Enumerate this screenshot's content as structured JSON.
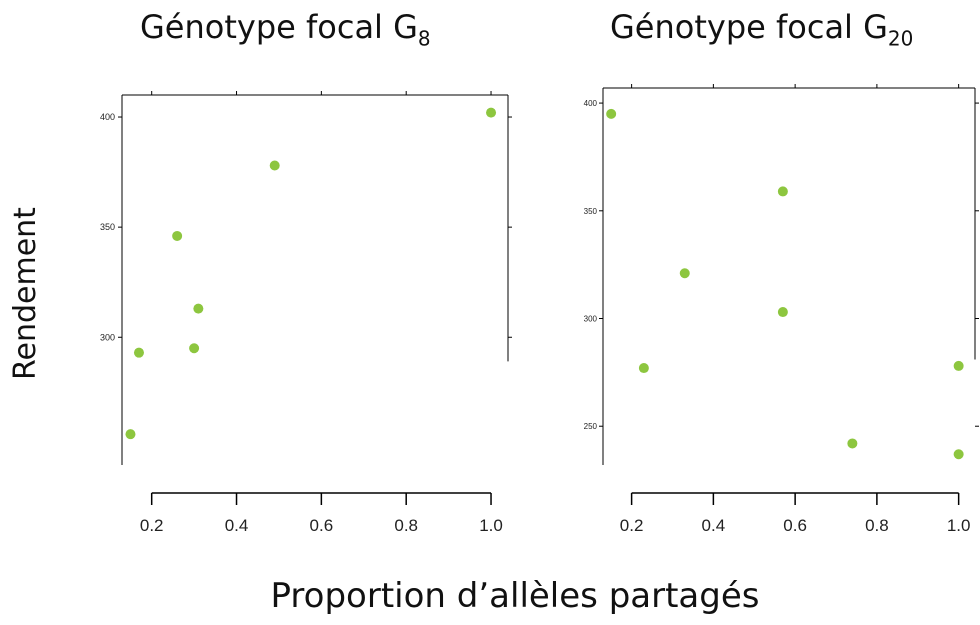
{
  "xlabel": "Proportion d’allèles partagés",
  "ylabel": "Rendement",
  "chart_data": [
    {
      "type": "scatter",
      "title_main": "Génotype focal G",
      "title_sub": "8",
      "xlim": [
        0.13,
        1.04
      ],
      "ylim": [
        242,
        410
      ],
      "xticks": [
        "0.2",
        "0.4",
        "0.6",
        "0.8",
        "1.0"
      ],
      "xtick_values": [
        0.2,
        0.4,
        0.6,
        0.8,
        1.0
      ],
      "yticks": [
        "300",
        "350",
        "400"
      ],
      "ytick_values": [
        300,
        350,
        400
      ],
      "point_color": "#8dc63f",
      "points": [
        {
          "x": 0.15,
          "y": 256
        },
        {
          "x": 0.17,
          "y": 293
        },
        {
          "x": 0.26,
          "y": 346
        },
        {
          "x": 0.3,
          "y": 295
        },
        {
          "x": 0.31,
          "y": 313
        },
        {
          "x": 0.49,
          "y": 378
        },
        {
          "x": 1.0,
          "y": 402
        }
      ]
    },
    {
      "type": "scatter",
      "title_main": "Génotype focal G",
      "title_sub": "20",
      "xlim": [
        0.13,
        1.04
      ],
      "ylim": [
        232,
        407
      ],
      "xticks": [
        "0.2",
        "0.4",
        "0.6",
        "0.8",
        "1.0"
      ],
      "xtick_values": [
        0.2,
        0.4,
        0.6,
        0.8,
        1.0
      ],
      "yticks": [
        "250",
        "300",
        "350",
        "400"
      ],
      "ytick_values": [
        250,
        300,
        350,
        400
      ],
      "point_color": "#8dc63f",
      "points": [
        {
          "x": 0.15,
          "y": 395
        },
        {
          "x": 0.23,
          "y": 277
        },
        {
          "x": 0.33,
          "y": 321
        },
        {
          "x": 0.57,
          "y": 359
        },
        {
          "x": 0.57,
          "y": 303
        },
        {
          "x": 0.74,
          "y": 242
        },
        {
          "x": 1.0,
          "y": 278
        },
        {
          "x": 1.0,
          "y": 237
        }
      ]
    }
  ]
}
